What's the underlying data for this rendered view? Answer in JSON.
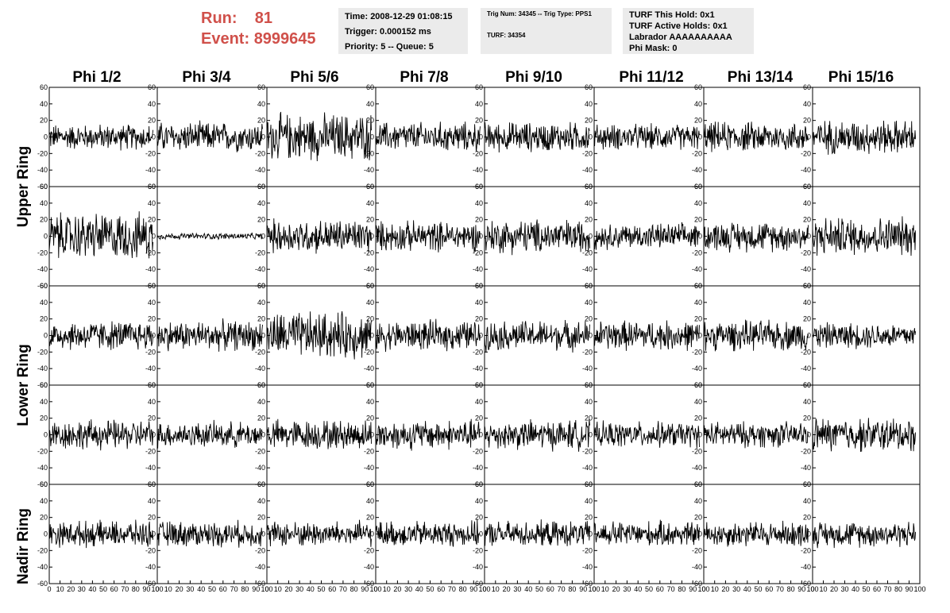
{
  "header": {
    "run_label": "Run:",
    "run_value": "81",
    "event_label": "Event:",
    "event_value": "8999645",
    "time": "Time: 2008-12-29 01:08:15",
    "trigger": "Trigger: 0.000152 ms",
    "priority": "Priority: 5 -- Queue: 5",
    "trig_num": "Trig Num: 34345 -- Trig Type: PPS1",
    "turf": "TURF: 34354",
    "turf_this_hold": "TURF This Hold: 0x1",
    "turf_active_holds": "TURF Active Holds: 0x1",
    "labrador": "Labrador AAAAAAAAAA",
    "phi_mask": "Phi Mask: 0"
  },
  "phi_columns": [
    "Phi 1/2",
    "Phi 3/4",
    "Phi 5/6",
    "Phi 7/8",
    "Phi 9/10",
    "Phi 11/12",
    "Phi 13/14",
    "Phi 15/16"
  ],
  "ring_labels": [
    "Upper Ring",
    "Lower Ring",
    "Nadir Ring"
  ],
  "y_ticks": [
    "60",
    "40",
    "20",
    "0",
    "-20",
    "-40",
    "-60"
  ],
  "x_ticks": [
    "0",
    "10",
    "20",
    "30",
    "40",
    "50",
    "60",
    "70",
    "80",
    "90",
    "100"
  ],
  "chart_data": {
    "type": "line",
    "panel_rows": 5,
    "panel_cols": 8,
    "xlim": [
      0,
      100
    ],
    "ylim": [
      -60,
      60
    ],
    "grid": false,
    "line_color": "#000000",
    "panel_amplitudes": [
      [
        12,
        14,
        22,
        14,
        14,
        12,
        14,
        16
      ],
      [
        22,
        3,
        16,
        14,
        16,
        12,
        14,
        18
      ],
      [
        14,
        14,
        22,
        14,
        14,
        14,
        14,
        12
      ],
      [
        14,
        12,
        14,
        14,
        14,
        12,
        12,
        16
      ],
      [
        12,
        12,
        12,
        12,
        12,
        12,
        12,
        12
      ]
    ]
  },
  "accent_color": "#d0504a"
}
